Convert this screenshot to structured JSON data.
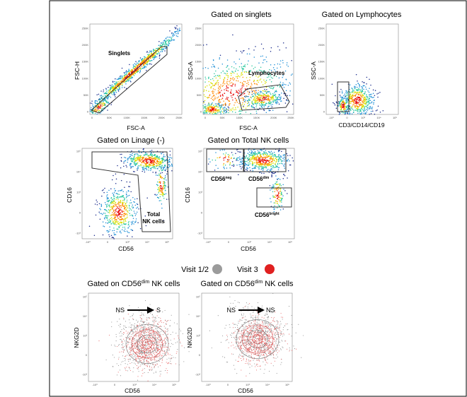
{
  "colors": {
    "frame": "#000000",
    "gate": "#333333",
    "legend_grey": "#9b9b9b",
    "legend_red": "#e02020",
    "density": [
      "#1a2b8c",
      "#1e8fd6",
      "#2cc8a0",
      "#d8e000",
      "#ff8a00",
      "#e81010"
    ]
  },
  "panels": {
    "p1": {
      "title": "",
      "xlabel": "FSC-A",
      "ylabel": "FSC-H",
      "gate_label": "Singlets",
      "yticks": [
        "250K",
        "200K",
        "150K",
        "100K",
        "50K",
        "0"
      ],
      "xticks": [
        "0",
        "50K",
        "100K",
        "150K",
        "200K",
        "250K"
      ]
    },
    "p2": {
      "title": "Gated on singlets",
      "xlabel": "FSC-A",
      "ylabel": "SSC-A",
      "gate_label": "Lymphocytes",
      "yticks": [
        "250K",
        "200K",
        "150K",
        "100K",
        "50K",
        "0"
      ],
      "xticks": [
        "0",
        "50K",
        "100K",
        "150K",
        "200K",
        "250K"
      ]
    },
    "p3": {
      "title": "Gated on Lymphocytes",
      "xlabel": "CD3/CD14/CD19",
      "ylabel": "SSC-A",
      "yticks": [
        "250K",
        "200K",
        "150K",
        "100K",
        "50K",
        "0"
      ],
      "xticks": [
        "-10³",
        "0",
        "10³",
        "10⁴",
        "10⁵"
      ]
    },
    "p4": {
      "title": "Gated on Linage (-)",
      "xlabel": "CD56",
      "ylabel": "CD16",
      "gate_label_1": "Total",
      "gate_label_2": "NK cells",
      "yticks": [
        "10⁵",
        "10⁴",
        "10³",
        "0",
        "-10³"
      ],
      "xticks": [
        "-10³",
        "0",
        "10³",
        "10⁴",
        "10⁵"
      ]
    },
    "p5": {
      "title": "Gated on Total NK cells",
      "xlabel": "CD56",
      "ylabel": "CD16",
      "gate_neg": "CD56",
      "gate_neg_sup": "neg",
      "gate_dim": "CD56",
      "gate_dim_sup": "dim",
      "gate_bright": "CD56",
      "gate_bright_sup": "bright",
      "yticks": [
        "10⁵",
        "10⁴",
        "10³",
        "0",
        "-10³"
      ],
      "xticks": [
        "-10³",
        "0",
        "10³",
        "10⁴",
        "10⁵"
      ]
    },
    "p6": {
      "title_pre": "Gated on CD56",
      "title_sup": "dim",
      "title_post": " NK cells",
      "xlabel": "CD56",
      "ylabel": "NKG2D",
      "from": "NS",
      "to": "S",
      "yticks": [
        "10⁵",
        "10⁴",
        "10³",
        "0",
        "-10³"
      ],
      "xticks": [
        "-10³",
        "0",
        "10³",
        "10⁴",
        "10⁵"
      ]
    },
    "p7": {
      "title_pre": "Gated on CD56",
      "title_sup": "dim",
      "title_post": " NK cells",
      "xlabel": "CD56",
      "ylabel": "NKG2D",
      "from": "NS",
      "to": "NS",
      "yticks": [
        "10⁵",
        "10⁴",
        "10³",
        "0",
        "-10³"
      ],
      "xticks": [
        "-10³",
        "0",
        "10³",
        "10⁴",
        "10⁵"
      ]
    }
  },
  "legend": {
    "visit12": "Visit 1/2",
    "visit3": "Visit 3"
  }
}
